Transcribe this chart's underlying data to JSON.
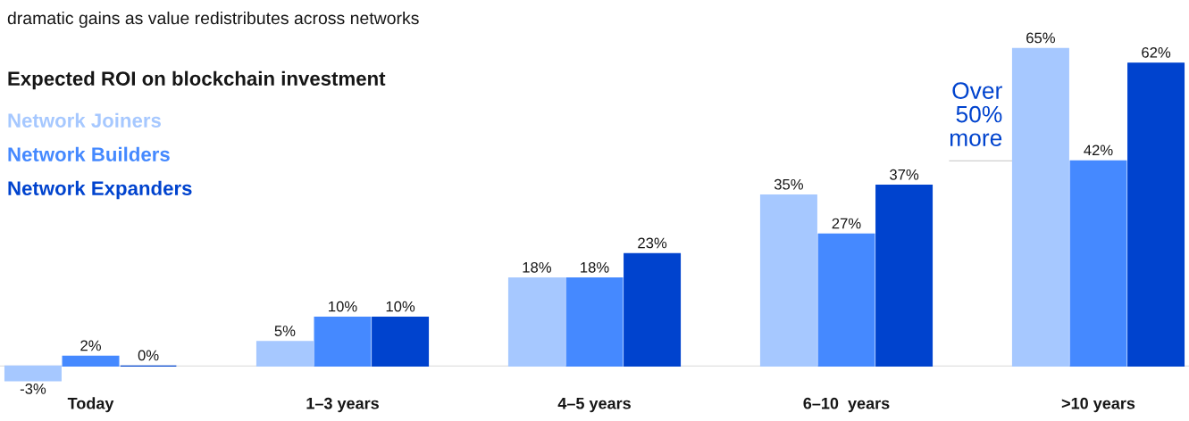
{
  "chart_data": {
    "type": "bar",
    "title": "Expected ROI on blockchain investment",
    "subtitle": "dramatic gains as value redistributes across networks",
    "categories": [
      "Today",
      "1–3 years",
      "4–5 years",
      "6–10  years",
      ">10 years"
    ],
    "series": [
      {
        "name": "Network Joiners",
        "color": "#a6c8ff",
        "values": [
          -3,
          5,
          18,
          35,
          65
        ],
        "value_labels": [
          "-3%",
          "5%",
          "18%",
          "35%",
          "65%"
        ]
      },
      {
        "name": "Network Builders",
        "color": "#4589ff",
        "values": [
          2,
          10,
          18,
          27,
          42
        ],
        "value_labels": [
          "2%",
          "10%",
          "18%",
          "27%",
          "42%"
        ]
      },
      {
        "name": "Network Expanders",
        "color": "#0043ce",
        "values": [
          0,
          10,
          23,
          37,
          62
        ],
        "value_labels": [
          "0%",
          "10%",
          "23%",
          "37%",
          "62%"
        ]
      }
    ],
    "annotations": [
      "Over\n50%\nmore"
    ],
    "legend": "top left",
    "grid": false
  }
}
